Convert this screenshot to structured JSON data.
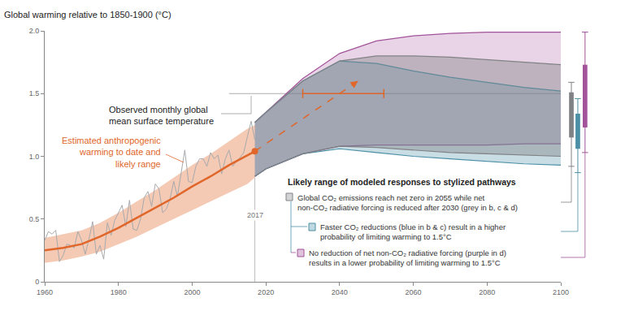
{
  "chart_data": {
    "type": "line",
    "title": "Global warming relative to 1850-1900 (°C)",
    "xlim": [
      1960,
      2100
    ],
    "xticks": [
      1960,
      1980,
      2000,
      2020,
      2040,
      2060,
      2080,
      2100
    ],
    "ylim": [
      0,
      2.0
    ],
    "yticks": [
      0,
      0.5,
      {
        "value": 1.0,
        "label": "1.0"
      },
      1.5,
      {
        "value": 2.0,
        "label": "2.0"
      }
    ],
    "grid": false,
    "series": [
      {
        "label": [
          "Observed monthly global",
          "mean surface temperature"
        ],
        "color": "#a7a9ac",
        "x": [
          1960,
          1961,
          1962,
          1963,
          1964,
          1965,
          1966,
          1967,
          1968,
          1969,
          1970,
          1971,
          1972,
          1973,
          1974,
          1975,
          1976,
          1977,
          1978,
          1979,
          1980,
          1981,
          1982,
          1983,
          1984,
          1985,
          1986,
          1987,
          1988,
          1989,
          1990,
          1991,
          1992,
          1993,
          1994,
          1995,
          1996,
          1997,
          1998,
          1999,
          2000,
          2001,
          2002,
          2003,
          2004,
          2005,
          2006,
          2007,
          2008,
          2009,
          2010,
          2011,
          2012,
          2013,
          2014,
          2015,
          2016,
          2017
        ],
        "values": [
          0.33,
          0.4,
          0.38,
          0.41,
          0.16,
          0.21,
          0.3,
          0.29,
          0.27,
          0.4,
          0.33,
          0.22,
          0.34,
          0.48,
          0.22,
          0.29,
          0.18,
          0.47,
          0.37,
          0.49,
          0.55,
          0.61,
          0.44,
          0.65,
          0.42,
          0.41,
          0.5,
          0.67,
          0.72,
          0.6,
          0.78,
          0.74,
          0.55,
          0.58,
          0.66,
          0.8,
          0.68,
          0.86,
          1.05,
          0.8,
          0.79,
          0.92,
          0.98,
          0.98,
          0.92,
          1.03,
          0.98,
          1.01,
          0.86,
          0.98,
          1.05,
          0.92,
          0.96,
          0.99,
          1.03,
          1.16,
          1.28,
          1.13
        ]
      },
      {
        "label": [
          "Estimated anthropogenic",
          "warming to date and",
          "likely range"
        ],
        "color": "#e0662a",
        "marker": "circle",
        "x": [
          1960,
          1965,
          1970,
          1975,
          1980,
          1985,
          1990,
          1995,
          2000,
          2005,
          2010,
          2015,
          2017
        ],
        "values": [
          0.25,
          0.27,
          0.3,
          0.36,
          0.43,
          0.51,
          0.59,
          0.67,
          0.76,
          0.84,
          0.93,
          1.01,
          1.04
        ],
        "lower": [
          0.15,
          0.17,
          0.2,
          0.24,
          0.3,
          0.36,
          0.43,
          0.5,
          0.57,
          0.64,
          0.71,
          0.78,
          0.83
        ],
        "upper": [
          0.35,
          0.38,
          0.41,
          0.47,
          0.55,
          0.64,
          0.73,
          0.83,
          0.93,
          1.02,
          1.12,
          1.22,
          1.25
        ]
      }
    ],
    "projection": {
      "x": [
        2017,
        2045
      ],
      "values": [
        1.04,
        1.6
      ],
      "color": "#e0662a",
      "line_style": "dash"
    },
    "crossing_range": {
      "x": [
        2030,
        2052
      ],
      "value": 1.5,
      "color": "#e0662a"
    },
    "reference_line": {
      "x": [
        2010,
        2100
      ],
      "value": 1.5
    },
    "year_marker": 2017,
    "pathways": {
      "heading": "Likely range of modeled responses to stylized pathways",
      "x": [
        2017,
        2020,
        2030,
        2040,
        2050,
        2060,
        2070,
        2080,
        2090,
        2100
      ],
      "items": [
        {
          "label": [
            "Global CO₂ emissions reach net zero in 2055 while net",
            "non-CO₂ radiative forcing is reduced after 2030 (grey in b, c & d)"
          ],
          "color": "#808285",
          "upper": [
            1.27,
            1.35,
            1.6,
            1.76,
            1.8,
            1.8,
            1.79,
            1.77,
            1.75,
            1.73
          ],
          "lower": [
            0.84,
            0.9,
            1.02,
            1.08,
            1.07,
            1.05,
            1.03,
            1.02,
            1.01,
            1.0
          ],
          "range_2100": {
            "box": [
              1.15,
              1.51
            ],
            "whisker": [
              0.92,
              1.59
            ]
          }
        },
        {
          "label": [
            "Faster CO₂ reductions (blue in b & c) result in a higher",
            "probability of limiting warming to 1.5°C"
          ],
          "color": "#4b8fa6",
          "upper": [
            1.27,
            1.35,
            1.6,
            1.76,
            1.74,
            1.68,
            1.63,
            1.59,
            1.55,
            1.52
          ],
          "lower": [
            0.84,
            0.9,
            1.02,
            1.06,
            1.03,
            1.0,
            0.98,
            0.96,
            0.94,
            0.93
          ],
          "range_2100": {
            "box": [
              1.06,
              1.34
            ],
            "whisker": [
              0.87,
              1.46
            ]
          }
        },
        {
          "label": [
            "No reduction of net non-CO₂ radiative forcing (purple in d)",
            "results in a lower probability of limiting warming to 1.5°C"
          ],
          "color": "#a2539a",
          "upper": [
            1.27,
            1.35,
            1.62,
            1.82,
            1.92,
            1.96,
            1.98,
            1.99,
            1.99,
            1.99
          ],
          "lower": [
            0.84,
            0.9,
            1.02,
            1.08,
            1.09,
            1.09,
            1.09,
            1.09,
            1.1,
            1.1
          ],
          "range_2100": {
            "box": [
              1.23,
              1.73
            ],
            "whisker": [
              1.03,
              1.99
            ]
          }
        }
      ]
    }
  }
}
